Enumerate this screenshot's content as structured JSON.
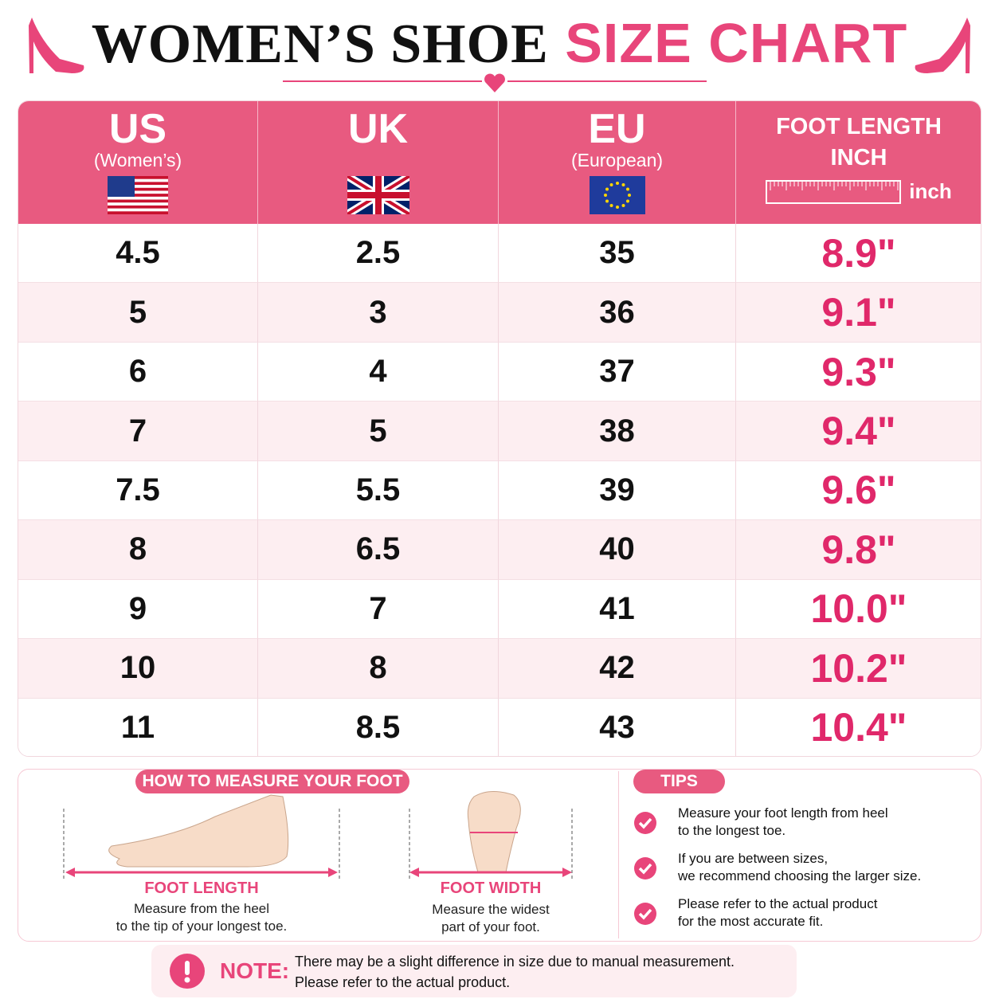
{
  "header": {
    "title_black": "WOMEN’S SHOE",
    "title_pink": "SIZE CHART"
  },
  "table": {
    "columns": [
      {
        "title": "US",
        "subtitle": "(Women’s)"
      },
      {
        "title": "UK"
      },
      {
        "title": "EU",
        "subtitle": "(European)"
      },
      {
        "title": "FOOT LENGTH",
        "subtitle": "INCH",
        "unit": "inch"
      }
    ],
    "rows": [
      [
        "4.5",
        "2.5",
        "35",
        "8.9\""
      ],
      [
        "5",
        "3",
        "36",
        "9.1\""
      ],
      [
        "6",
        "4",
        "37",
        "9.3\""
      ],
      [
        "7",
        "5",
        "38",
        "9.4\""
      ],
      [
        "7.5",
        "5.5",
        "39",
        "9.6\""
      ],
      [
        "8",
        "6.5",
        "40",
        "9.8\""
      ],
      [
        "9",
        "7",
        "41",
        "10.0\""
      ],
      [
        "10",
        "8",
        "42",
        "10.2\""
      ],
      [
        "11",
        "8.5",
        "43",
        "10.4\""
      ]
    ]
  },
  "measure": {
    "title": "HOW TO MEASURE YOUR FOOT",
    "items": [
      {
        "label": "FOOT LENGTH",
        "lines": [
          "Measure from the heel",
          "to the tip of your longest toe."
        ]
      },
      {
        "label": "FOOT WIDTH",
        "lines": [
          "Measure the widest",
          "part of your foot."
        ]
      }
    ]
  },
  "tips": {
    "title": "TIPS",
    "items": [
      {
        "lines": [
          "Measure your foot length from heel",
          "to the longest toe."
        ]
      },
      {
        "lines": [
          "If you are between sizes,",
          "we recommend choosing the larger size."
        ]
      },
      {
        "lines": [
          "Please refer to the actual product",
          "for the most accurate fit."
        ]
      }
    ]
  },
  "note": {
    "label": "NOTE:",
    "lines": [
      "There may be a slight difference in size due to manual measurement.",
      "Please refer to the actual product."
    ]
  }
}
